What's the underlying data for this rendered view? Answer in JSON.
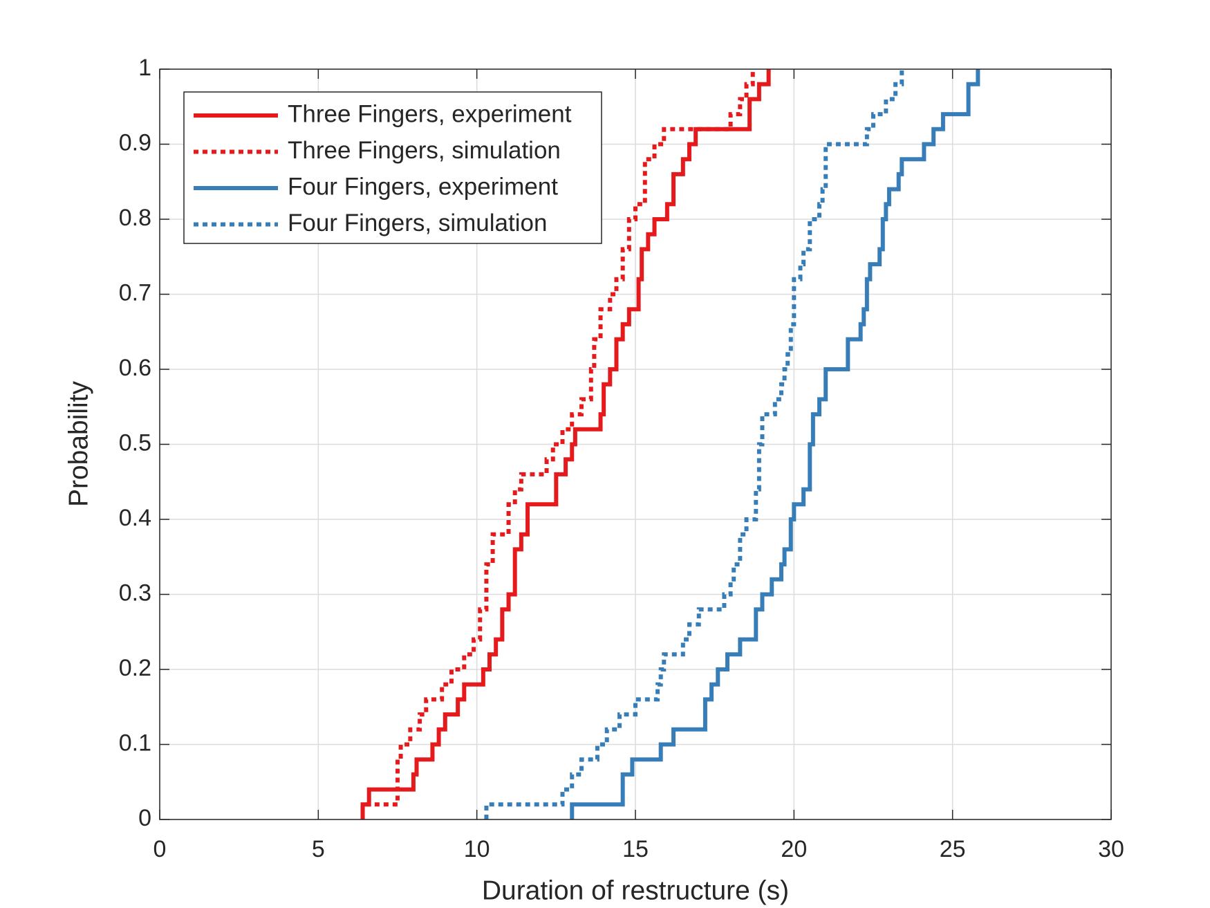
{
  "chart_data": {
    "type": "step",
    "xlabel": "Duration of restructure (s)",
    "ylabel": "Probability",
    "xlim": [
      0,
      30
    ],
    "xticks": [
      0,
      5,
      10,
      15,
      20,
      25,
      30
    ],
    "ylim": [
      0,
      1
    ],
    "yticks": [
      0,
      0.1,
      0.2,
      0.3,
      0.4,
      0.5,
      0.6,
      0.7,
      0.8,
      0.9,
      1
    ],
    "grid": true,
    "legend": "upper left",
    "series": [
      {
        "name": "Three Fingers, experiment",
        "color": "#e41a1c",
        "style": "solid",
        "x": [
          6.4,
          6.4,
          6.6,
          8.0,
          8.1,
          8.6,
          8.8,
          9.0,
          9.4,
          9.6,
          10.2,
          10.4,
          10.6,
          10.8,
          11.0,
          11.2,
          11.4,
          11.6,
          12.5,
          12.8,
          13.0,
          13.1,
          13.9,
          14.0,
          14.2,
          14.4,
          14.6,
          14.8,
          15.1,
          15.2,
          15.4,
          15.6,
          16.0,
          16.2,
          16.5,
          16.7,
          16.9,
          17.1,
          18.6,
          18.9,
          19.2
        ],
        "values": [
          0,
          0.02,
          0.04,
          0.06,
          0.08,
          0.1,
          0.12,
          0.14,
          0.16,
          0.18,
          0.2,
          0.22,
          0.24,
          0.28,
          0.3,
          0.36,
          0.38,
          0.42,
          0.46,
          0.48,
          0.5,
          0.52,
          0.54,
          0.58,
          0.6,
          0.64,
          0.66,
          0.68,
          0.72,
          0.76,
          0.78,
          0.8,
          0.82,
          0.86,
          0.88,
          0.9,
          0.92,
          0.92,
          0.96,
          0.98,
          1
        ]
      },
      {
        "name": "Three Fingers, simulation",
        "color": "#e41a1c",
        "style": "dotted",
        "x": [
          6.4,
          6.4,
          7.5,
          7.6,
          7.9,
          8.2,
          8.4,
          8.9,
          9.2,
          9.6,
          9.9,
          10.1,
          10.3,
          10.5,
          11.0,
          11.2,
          11.4,
          12.2,
          12.4,
          12.7,
          13.0,
          13.3,
          13.6,
          13.7,
          13.9,
          14.2,
          14.4,
          14.6,
          14.8,
          15.0,
          15.3,
          15.6,
          15.9,
          18.0,
          18.3,
          18.5,
          18.7
        ],
        "values": [
          0,
          0.02,
          0.08,
          0.1,
          0.12,
          0.14,
          0.16,
          0.18,
          0.2,
          0.22,
          0.24,
          0.28,
          0.34,
          0.38,
          0.42,
          0.44,
          0.46,
          0.48,
          0.5,
          0.52,
          0.54,
          0.56,
          0.6,
          0.64,
          0.68,
          0.7,
          0.72,
          0.76,
          0.8,
          0.82,
          0.88,
          0.9,
          0.92,
          0.94,
          0.96,
          0.98,
          1
        ]
      },
      {
        "name": "Four Fingers, experiment",
        "color": "#377eb8",
        "style": "solid",
        "x": [
          13.0,
          13.0,
          14.6,
          14.9,
          15.8,
          16.2,
          17.2,
          17.4,
          17.6,
          17.9,
          18.3,
          18.8,
          19.0,
          19.3,
          19.6,
          19.7,
          19.9,
          20.0,
          20.3,
          20.5,
          20.6,
          20.8,
          21.0,
          21.7,
          22.1,
          22.2,
          22.3,
          22.4,
          22.7,
          22.8,
          22.9,
          23.0,
          23.3,
          23.4,
          24.1,
          24.4,
          24.7,
          25.5,
          25.8
        ],
        "values": [
          0,
          0.02,
          0.06,
          0.08,
          0.1,
          0.12,
          0.16,
          0.18,
          0.2,
          0.22,
          0.24,
          0.28,
          0.3,
          0.32,
          0.34,
          0.36,
          0.4,
          0.42,
          0.44,
          0.5,
          0.54,
          0.56,
          0.6,
          0.64,
          0.66,
          0.68,
          0.72,
          0.74,
          0.76,
          0.8,
          0.82,
          0.84,
          0.86,
          0.88,
          0.9,
          0.92,
          0.94,
          0.98,
          1
        ]
      },
      {
        "name": "Four Fingers, simulation",
        "color": "#377eb8",
        "style": "dotted",
        "x": [
          10.3,
          10.3,
          12.7,
          13.0,
          13.3,
          13.8,
          14.1,
          14.5,
          15.0,
          15.7,
          15.8,
          15.9,
          16.5,
          16.7,
          17.0,
          17.8,
          18.0,
          18.1,
          18.3,
          18.5,
          18.8,
          18.9,
          19.0,
          19.4,
          19.6,
          19.7,
          19.8,
          19.9,
          20.0,
          20.2,
          20.3,
          20.5,
          20.8,
          20.9,
          21.0,
          22.3,
          22.5,
          22.9,
          23.2,
          23.4
        ],
        "values": [
          0,
          0.02,
          0.04,
          0.06,
          0.08,
          0.1,
          0.12,
          0.14,
          0.16,
          0.18,
          0.2,
          0.22,
          0.24,
          0.26,
          0.28,
          0.3,
          0.32,
          0.34,
          0.38,
          0.4,
          0.44,
          0.5,
          0.54,
          0.56,
          0.58,
          0.6,
          0.62,
          0.66,
          0.72,
          0.74,
          0.76,
          0.8,
          0.82,
          0.84,
          0.9,
          0.92,
          0.94,
          0.96,
          0.98,
          1
        ]
      }
    ]
  }
}
